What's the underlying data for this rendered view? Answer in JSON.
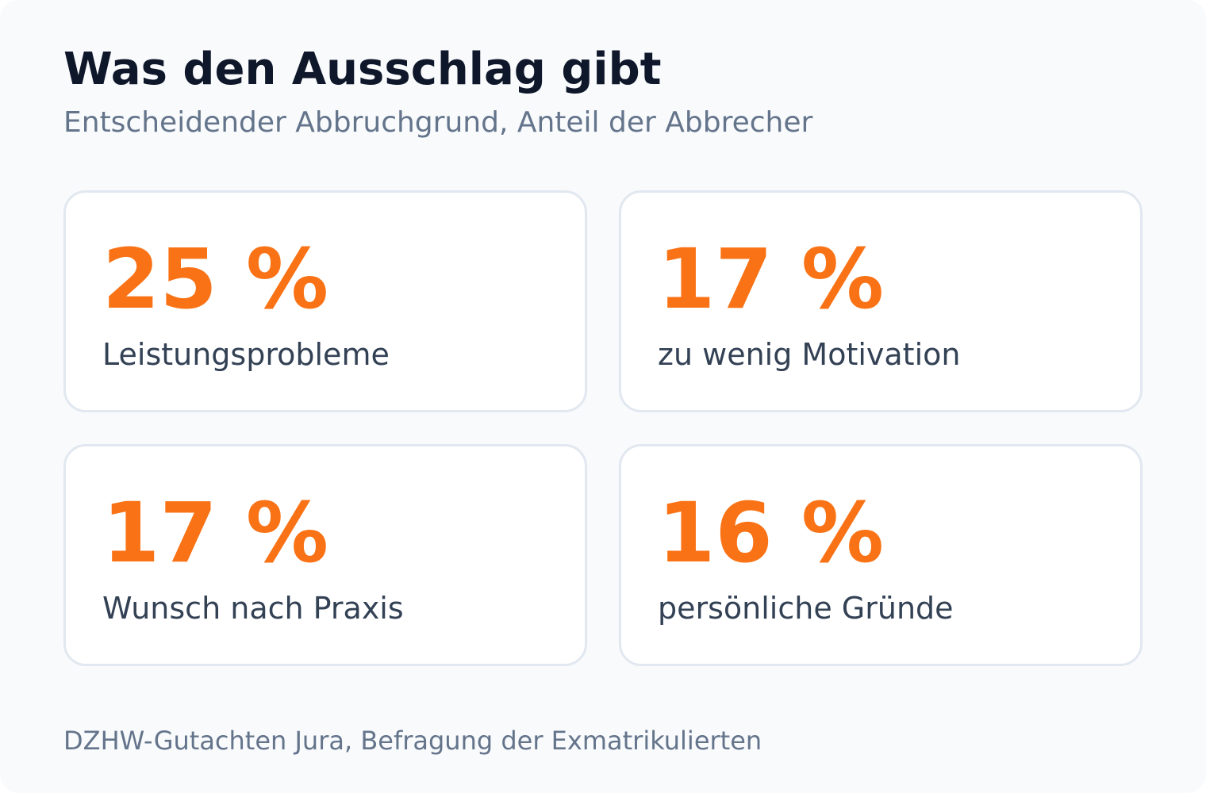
{
  "header": {
    "title": "Was den Ausschlag gibt",
    "subtitle": "Entscheidender Abbruchgrund, Anteil der Abbrecher"
  },
  "cards": [
    {
      "value": "25 %",
      "label": "Leistungsprobleme"
    },
    {
      "value": "17 %",
      "label": "zu wenig Motivation"
    },
    {
      "value": "17 %",
      "label": "Wunsch nach Praxis"
    },
    {
      "value": "16 %",
      "label": "persönliche Gründe"
    }
  ],
  "footer": {
    "source": "DZHW-Gutachten Jura, Befragung der Exmatrikulierten"
  },
  "colors": {
    "accent": "#f97316",
    "title": "#0f172a",
    "muted": "#64748b",
    "label": "#334155",
    "card_border": "#e2e8f0",
    "background": "#f8fafc"
  }
}
